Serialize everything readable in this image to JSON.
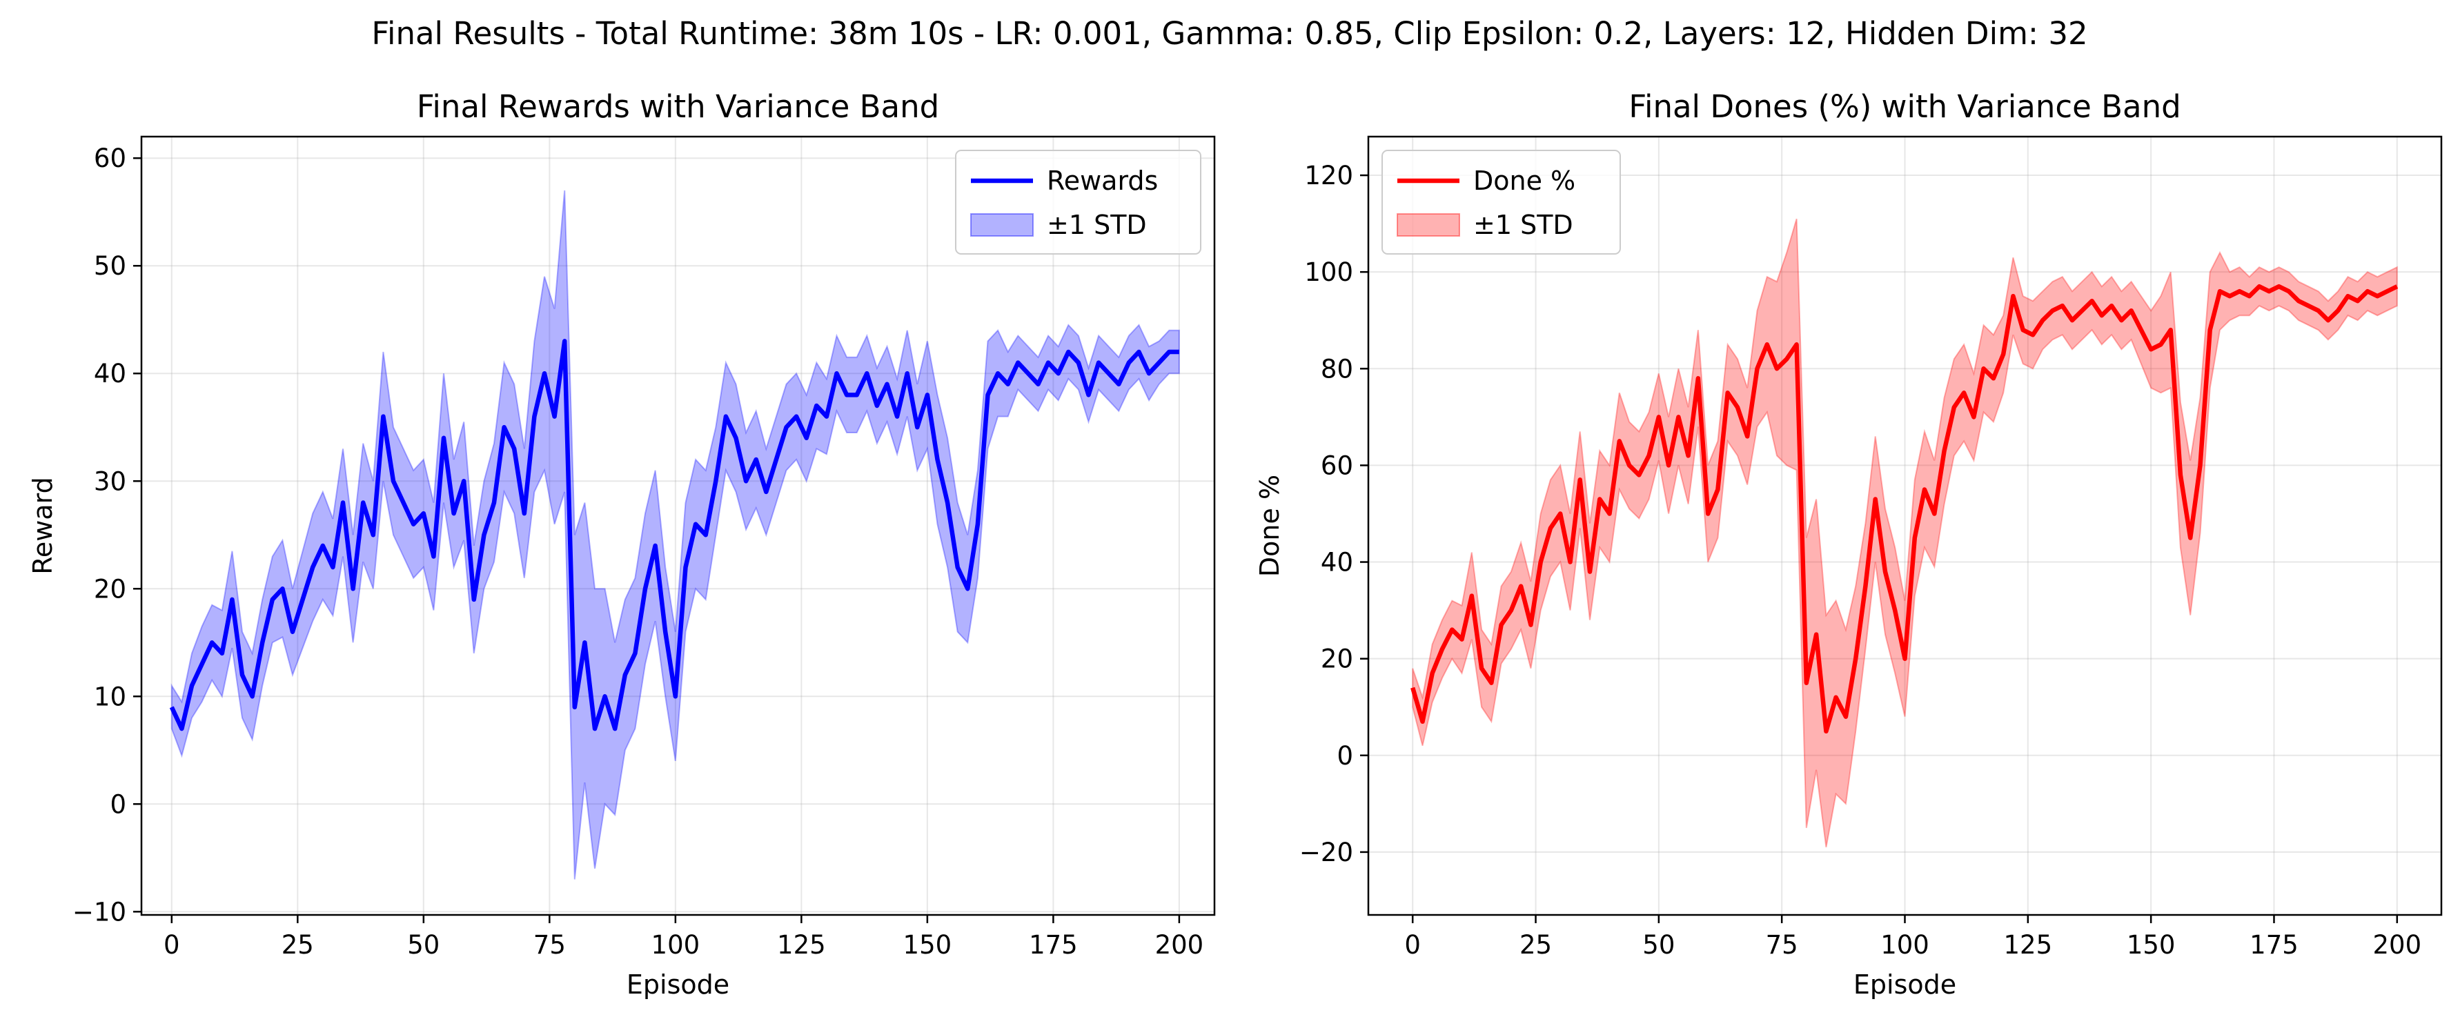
{
  "suptitle": "Final Results - Total Runtime: 38m 10s - LR: 0.001, Gamma: 0.85, Clip Epsilon: 0.2, Layers: 12, Hidden Dim: 32",
  "chart_data": [
    {
      "type": "line",
      "title": "Final Rewards with Variance Band",
      "xlabel": "Episode",
      "ylabel": "Reward",
      "xlim": [
        -6,
        207
      ],
      "ylim": [
        -10.3,
        62
      ],
      "xticks": [
        0,
        25,
        50,
        75,
        100,
        125,
        150,
        175,
        200
      ],
      "yticks": [
        -10,
        0,
        10,
        20,
        30,
        40,
        50,
        60
      ],
      "grid": true,
      "legend_position": "top-right",
      "colors": {
        "line": "#0000ff",
        "band": "#0000ff"
      },
      "series": [
        {
          "name": "Rewards",
          "x": [
            0,
            2,
            4,
            6,
            8,
            10,
            12,
            14,
            16,
            18,
            20,
            22,
            24,
            26,
            28,
            30,
            32,
            34,
            36,
            38,
            40,
            42,
            44,
            46,
            48,
            50,
            52,
            54,
            56,
            58,
            60,
            62,
            64,
            66,
            68,
            70,
            72,
            74,
            76,
            78,
            80,
            82,
            84,
            86,
            88,
            90,
            92,
            94,
            96,
            98,
            100,
            102,
            104,
            106,
            108,
            110,
            112,
            114,
            116,
            118,
            120,
            122,
            124,
            126,
            128,
            130,
            132,
            134,
            136,
            138,
            140,
            142,
            144,
            146,
            148,
            150,
            152,
            154,
            156,
            158,
            160,
            162,
            164,
            166,
            168,
            170,
            172,
            174,
            176,
            178,
            180,
            182,
            184,
            186,
            188,
            190,
            192,
            194,
            196,
            198,
            200
          ],
          "values": [
            9,
            7,
            11,
            13,
            15,
            14,
            19,
            12,
            10,
            15,
            19,
            20,
            16,
            19,
            22,
            24,
            22,
            28,
            20,
            28,
            25,
            36,
            30,
            28,
            26,
            27,
            23,
            34,
            27,
            30,
            19,
            25,
            28,
            35,
            33,
            27,
            36,
            40,
            36,
            43,
            9,
            15,
            7,
            10,
            7,
            12,
            14,
            20,
            24,
            16,
            10,
            22,
            26,
            25,
            30,
            36,
            34,
            30,
            32,
            29,
            32,
            35,
            36,
            34,
            37,
            36,
            40,
            38,
            38,
            40,
            37,
            39,
            36,
            40,
            35,
            38,
            32,
            28,
            22,
            20,
            26,
            38,
            40,
            39,
            41,
            40,
            39,
            41,
            40,
            42,
            41,
            38,
            41,
            40,
            39,
            41,
            42,
            40,
            41,
            42,
            42
          ],
          "std": [
            2,
            2.5,
            3,
            3.5,
            3.5,
            4,
            4.5,
            4,
            4,
            4,
            4,
            4.5,
            4,
            4.5,
            5,
            5,
            4.5,
            5,
            5,
            5.5,
            5,
            6,
            5,
            5,
            5,
            5,
            5,
            6,
            5,
            5.5,
            5,
            5,
            5.5,
            6,
            6,
            6,
            7,
            9,
            10,
            14,
            16,
            13,
            13,
            10,
            8,
            7,
            7,
            7,
            7,
            6,
            6,
            6,
            6,
            6,
            5,
            5,
            5,
            4.5,
            4.5,
            4,
            4,
            4,
            4,
            4,
            4,
            3.5,
            3.5,
            3.5,
            3.5,
            3.5,
            3.5,
            3.5,
            3.5,
            4,
            4,
            5,
            6,
            6,
            6,
            5,
            5,
            5,
            4,
            3,
            2.5,
            2.5,
            2.5,
            2.5,
            2.5,
            2.5,
            2.5,
            2.5,
            2.5,
            2.5,
            2.5,
            2.5,
            2.5,
            2.5,
            2,
            2,
            2
          ]
        }
      ],
      "legend": [
        {
          "label": "Rewards",
          "kind": "line"
        },
        {
          "label": "±1 STD",
          "kind": "band"
        }
      ]
    },
    {
      "type": "line",
      "title": "Final Dones (%) with Variance Band",
      "xlabel": "Episode",
      "ylabel": "Done %",
      "xlim": [
        -9,
        209
      ],
      "ylim": [
        -33,
        128
      ],
      "xticks": [
        0,
        25,
        50,
        75,
        100,
        125,
        150,
        175,
        200
      ],
      "yticks": [
        -20,
        0,
        20,
        40,
        60,
        80,
        100,
        120
      ],
      "grid": true,
      "legend_position": "top-left",
      "colors": {
        "line": "#ff0000",
        "band": "#ff0000"
      },
      "series": [
        {
          "name": "Done %",
          "x": [
            0,
            2,
            4,
            6,
            8,
            10,
            12,
            14,
            16,
            18,
            20,
            22,
            24,
            26,
            28,
            30,
            32,
            34,
            36,
            38,
            40,
            42,
            44,
            46,
            48,
            50,
            52,
            54,
            56,
            58,
            60,
            62,
            64,
            66,
            68,
            70,
            72,
            74,
            76,
            78,
            80,
            82,
            84,
            86,
            88,
            90,
            92,
            94,
            96,
            98,
            100,
            102,
            104,
            106,
            108,
            110,
            112,
            114,
            116,
            118,
            120,
            122,
            124,
            126,
            128,
            130,
            132,
            134,
            136,
            138,
            140,
            142,
            144,
            146,
            148,
            150,
            152,
            154,
            156,
            158,
            160,
            162,
            164,
            166,
            168,
            170,
            172,
            174,
            176,
            178,
            180,
            182,
            184,
            186,
            188,
            190,
            192,
            194,
            196,
            198,
            200
          ],
          "values": [
            14,
            7,
            17,
            22,
            26,
            24,
            33,
            18,
            15,
            27,
            30,
            35,
            27,
            40,
            47,
            50,
            40,
            57,
            38,
            53,
            50,
            65,
            60,
            58,
            62,
            70,
            60,
            70,
            62,
            78,
            50,
            55,
            75,
            72,
            66,
            80,
            85,
            80,
            82,
            85,
            15,
            25,
            5,
            12,
            8,
            20,
            35,
            53,
            38,
            30,
            20,
            45,
            55,
            50,
            63,
            72,
            75,
            70,
            80,
            78,
            83,
            95,
            88,
            87,
            90,
            92,
            93,
            90,
            92,
            94,
            91,
            93,
            90,
            92,
            88,
            84,
            85,
            88,
            58,
            45,
            60,
            88,
            96,
            95,
            96,
            95,
            97,
            96,
            97,
            96,
            94,
            93,
            92,
            90,
            92,
            95,
            94,
            96,
            95,
            96,
            97
          ],
          "std": [
            4,
            5,
            6,
            6,
            6,
            7,
            9,
            8,
            8,
            8,
            8,
            9,
            9,
            10,
            10,
            10,
            10,
            10,
            10,
            10,
            10,
            10,
            9,
            9,
            9,
            9,
            10,
            10,
            10,
            10,
            10,
            10,
            10,
            10,
            10,
            12,
            14,
            18,
            22,
            26,
            30,
            28,
            24,
            20,
            18,
            15,
            13,
            13,
            13,
            13,
            12,
            12,
            12,
            11,
            11,
            10,
            10,
            9,
            9,
            9,
            8,
            8,
            7,
            7,
            6,
            6,
            6,
            6,
            6,
            6,
            6,
            6,
            6,
            6,
            7,
            8,
            10,
            12,
            15,
            16,
            14,
            12,
            8,
            5,
            5,
            4,
            4,
            4,
            4,
            4,
            4,
            4,
            4,
            4,
            4,
            4,
            4,
            4,
            4,
            4,
            4
          ]
        }
      ],
      "legend": [
        {
          "label": "Done %",
          "kind": "line"
        },
        {
          "label": "±1 STD",
          "kind": "band"
        }
      ]
    }
  ]
}
